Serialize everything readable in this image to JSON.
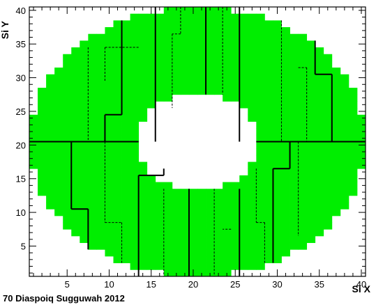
{
  "chart_data": {
    "type": "heatmap",
    "xlabel": "Si X",
    "ylabel": "Si Y",
    "xlim": [
      1,
      40
    ],
    "ylim": [
      1,
      40
    ],
    "x_ticks": [
      5,
      10,
      15,
      20,
      25,
      30,
      35,
      40
    ],
    "y_ticks": [
      5,
      10,
      15,
      20,
      25,
      30,
      35,
      40
    ],
    "fill_color": "#00ee00",
    "shape": "annulus",
    "outer_radius": 20,
    "inner_radius": 7.2,
    "center": [
      20.5,
      20.5
    ],
    "quadrant_boundaries": {
      "x": [
        0,
        41
      ],
      "y": 20.5
    }
  },
  "footer_text": "70  Diaspoiq  Sugguwah  2012"
}
